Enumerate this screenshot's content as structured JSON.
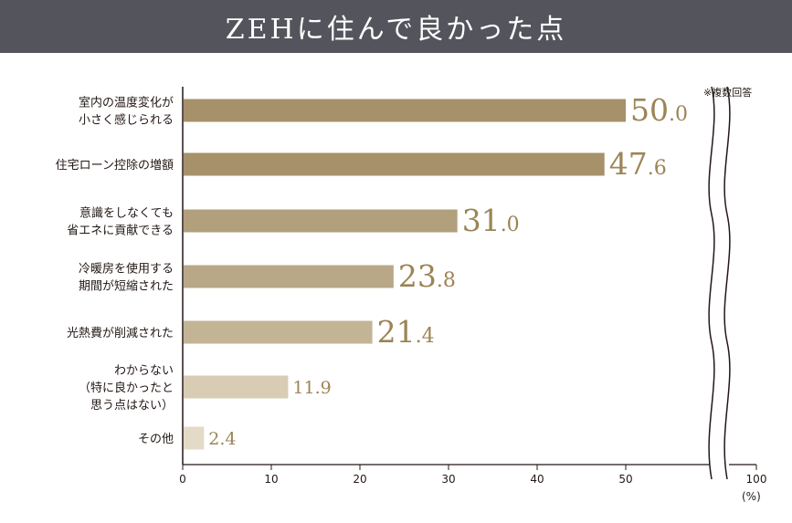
{
  "title": "ZEHに住んで良かった点",
  "note": "※複数回答",
  "unit": "(%)",
  "colors": {
    "header_bg": "#54545c",
    "bars": [
      "#a7916a",
      "#a7916a",
      "#b2a07c",
      "#b8a887",
      "#c2b495",
      "#d8ccb4",
      "#e3dac8"
    ],
    "value_text": "#9c8455"
  },
  "chart_data": {
    "type": "bar",
    "orientation": "horizontal",
    "categories": [
      [
        "室内の温度変化が",
        "小さく感じられる"
      ],
      [
        "住宅ローン控除の増額"
      ],
      [
        "意識をしなくても",
        "省エネに貢献できる"
      ],
      [
        "冷暖房を使用する",
        "期間が短縮された"
      ],
      [
        "光熱費が削減された"
      ],
      [
        "わからない",
        "（特に良かったと",
        "思う点はない）"
      ],
      [
        "その他"
      ]
    ],
    "values": [
      50.0,
      47.6,
      31.0,
      23.8,
      21.4,
      11.9,
      2.4
    ],
    "value_labels": [
      "50.0",
      "47.6",
      "31.0",
      "23.8",
      "21.4",
      "11.9",
      "2.4"
    ],
    "xlim": [
      0,
      100
    ],
    "xticks": [
      0,
      10,
      20,
      30,
      40,
      50,
      100
    ],
    "axis_break": true,
    "grid": false
  }
}
